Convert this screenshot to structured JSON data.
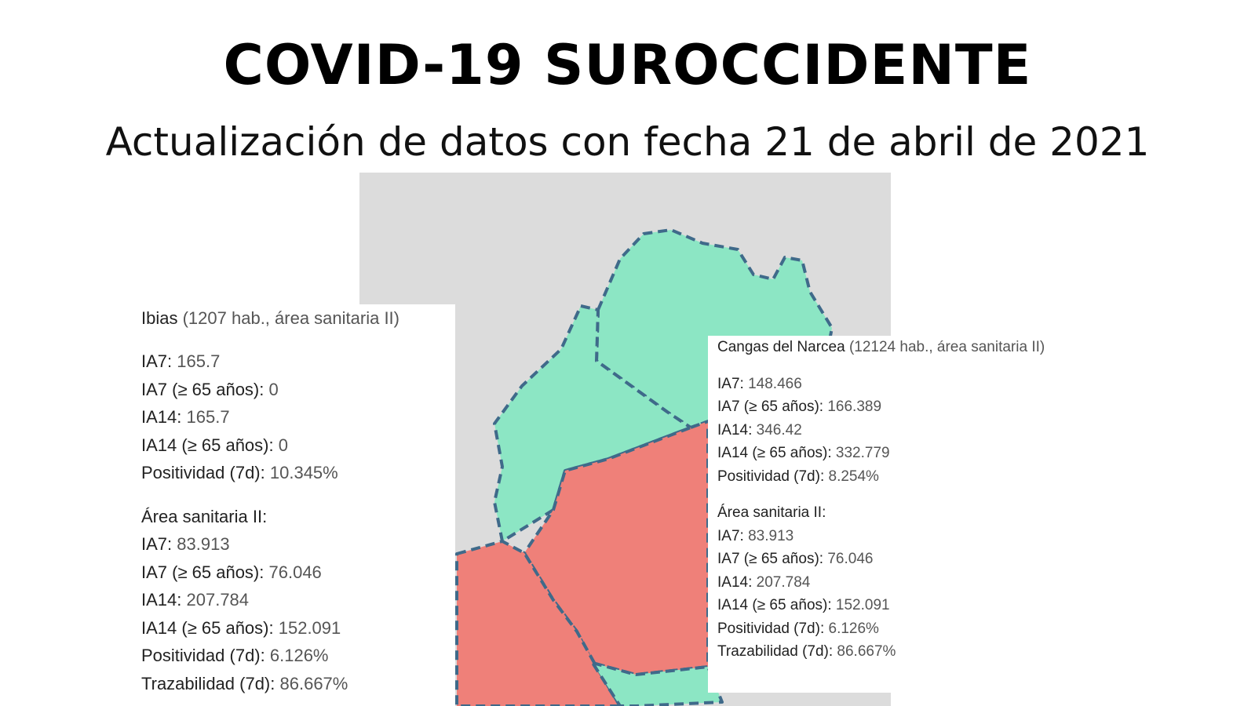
{
  "header": {
    "title": "COVID-19 SUROCCIDENTE",
    "subtitle": "Actualización de datos con fecha 21 de abril de 2021"
  },
  "tooltips": [
    {
      "place": "Ibias",
      "details": "(1207 hab., área sanitaria II)",
      "stats": [
        {
          "label": "IA7:",
          "value": "165.7"
        },
        {
          "label": "IA7 (≥ 65 años):",
          "value": "0"
        },
        {
          "label": "IA14:",
          "value": "165.7"
        },
        {
          "label": "IA14 (≥ 65 años):",
          "value": "0"
        },
        {
          "label": "Positividad (7d):",
          "value": "10.345%"
        }
      ],
      "area_title": "Área sanitaria II:",
      "area_stats": [
        {
          "label": "IA7:",
          "value": "83.913"
        },
        {
          "label": "IA7 (≥ 65 años):",
          "value": "76.046"
        },
        {
          "label": "IA14:",
          "value": "207.784"
        },
        {
          "label": "IA14 (≥ 65 años):",
          "value": "152.091"
        },
        {
          "label": "Positividad (7d):",
          "value": "6.126%"
        },
        {
          "label": "Trazabilidad (7d):",
          "value": "86.667%"
        }
      ]
    },
    {
      "place": "Cangas del Narcea",
      "details": "(12124 hab., área sanitaria II)",
      "stats": [
        {
          "label": "IA7:",
          "value": "148.466"
        },
        {
          "label": "IA7 (≥ 65 años):",
          "value": "166.389"
        },
        {
          "label": "IA14:",
          "value": "346.42"
        },
        {
          "label": "IA14 (≥ 65 años):",
          "value": "332.779"
        },
        {
          "label": "Positividad (7d):",
          "value": "8.254%"
        }
      ],
      "area_title": "Área sanitaria II:",
      "area_stats": [
        {
          "label": "IA7:",
          "value": "83.913"
        },
        {
          "label": "IA7 (≥ 65 años):",
          "value": "76.046"
        },
        {
          "label": "IA14:",
          "value": "207.784"
        },
        {
          "label": "IA14 (≥ 65 años):",
          "value": "152.091"
        },
        {
          "label": "Positividad (7d):",
          "value": "6.126%"
        },
        {
          "label": "Trazabilidad (7d):",
          "value": "86.667%"
        }
      ]
    }
  ]
}
